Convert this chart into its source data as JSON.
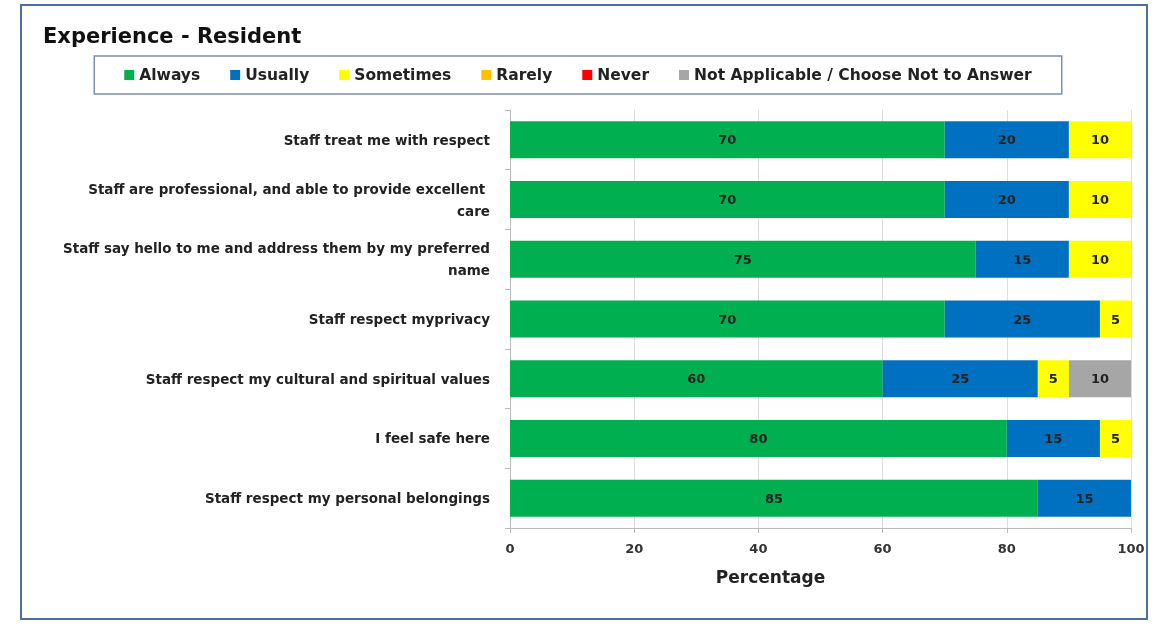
{
  "chart_data": {
    "type": "bar",
    "orientation": "horizontal",
    "stacked": true,
    "title": "Experience - Resident",
    "xlabel": "Percentage",
    "categories": [
      "Staff treat me with respect",
      "Staff are professional, and able to provide excellent care",
      "Staff say hello to me and address them by my preferred name",
      "Staff respect myprivacy",
      "Staff respect my cultural and spiritual values",
      "I feel safe here",
      "Staff respect my personal belongings"
    ],
    "series": [
      {
        "name": "Always",
        "color": "#00b050",
        "values": [
          70,
          70,
          75,
          70,
          60,
          80,
          85
        ]
      },
      {
        "name": "Usually",
        "color": "#0070c0",
        "values": [
          20,
          20,
          15,
          25,
          25,
          15,
          15
        ]
      },
      {
        "name": "Sometimes",
        "color": "#ffff00",
        "values": [
          10,
          10,
          10,
          5,
          5,
          5,
          null
        ]
      },
      {
        "name": "Rarely",
        "color": "#ffc000",
        "values": [
          null,
          null,
          null,
          null,
          null,
          null,
          null
        ]
      },
      {
        "name": "Never",
        "color": "#ff0000",
        "values": [
          null,
          null,
          null,
          null,
          null,
          null,
          null
        ]
      },
      {
        "name": "Not Applicable / Choose Not to Answer",
        "color": "#a6a6a6",
        "values": [
          null,
          null,
          null,
          null,
          10,
          null,
          null
        ]
      }
    ],
    "xlim": [
      0,
      100
    ],
    "xticks": [
      0,
      20,
      40,
      60,
      80,
      100
    ],
    "grid": "x",
    "legend": "top",
    "data_labels": true
  }
}
